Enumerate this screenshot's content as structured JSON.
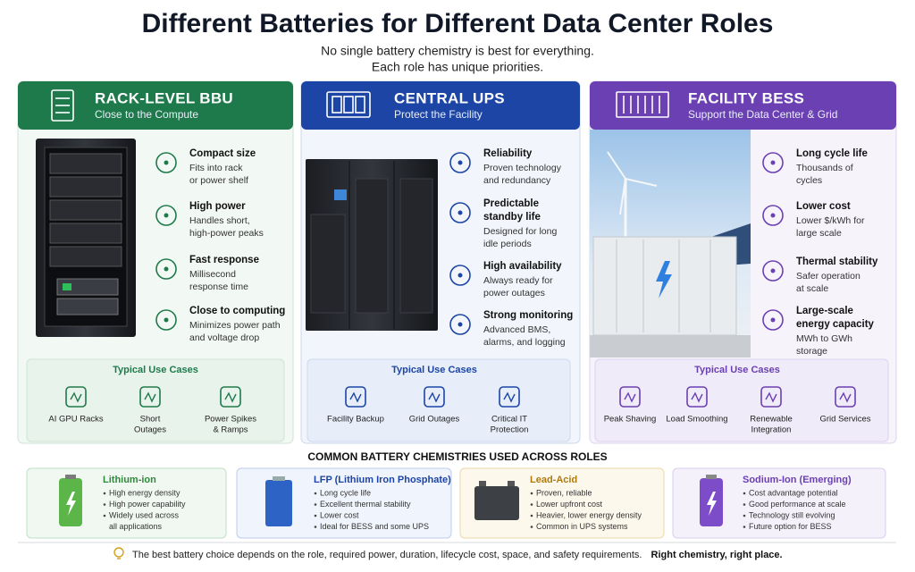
{
  "header": {
    "title": "Different Batteries for Different Data Center Roles",
    "subtitle": [
      "No single battery chemistry is best for everything.",
      "Each role has unique priorities."
    ]
  },
  "roles": [
    {
      "title": "RACK-LEVEL BBU",
      "subtitle": "Close to the Compute",
      "features": [
        {
          "title": [
            "Compact size"
          ],
          "text": [
            "Fits into rack",
            "or power shelf"
          ]
        },
        {
          "title": [
            "High power"
          ],
          "text": [
            "Handles short,",
            "high-power peaks"
          ]
        },
        {
          "title": [
            "Fast response"
          ],
          "text": [
            "Millisecond",
            "response time"
          ]
        },
        {
          "title": [
            "Close to computing"
          ],
          "text": [
            "Minimizes power path",
            "and voltage drop"
          ]
        }
      ],
      "use_cases_title": "Typical Use Cases",
      "use_cases": [
        [
          "AI GPU Racks"
        ],
        [
          "Short",
          "Outages"
        ],
        [
          "Power Spikes",
          "& Ramps"
        ]
      ]
    },
    {
      "title": "CENTRAL UPS",
      "subtitle": "Protect the Facility",
      "features": [
        {
          "title": [
            "Reliability"
          ],
          "text": [
            "Proven technology",
            "and redundancy"
          ]
        },
        {
          "title": [
            "Predictable",
            "standby life"
          ],
          "text": [
            "Designed for long",
            "idle periods"
          ]
        },
        {
          "title": [
            "High availability"
          ],
          "text": [
            "Always ready for",
            "power outages"
          ]
        },
        {
          "title": [
            "Strong monitoring"
          ],
          "text": [
            "Advanced BMS,",
            "alarms, and logging"
          ]
        }
      ],
      "use_cases_title": "Typical Use Cases",
      "use_cases": [
        [
          "Facility Backup"
        ],
        [
          "Grid Outages"
        ],
        [
          "Critical IT",
          "Protection"
        ]
      ]
    },
    {
      "title": "FACILITY BESS",
      "subtitle": "Support the Data Center & Grid",
      "features": [
        {
          "title": [
            "Long cycle life"
          ],
          "text": [
            "Thousands of",
            "cycles"
          ]
        },
        {
          "title": [
            "Lower cost"
          ],
          "text": [
            "Lower $/kWh for",
            "large scale"
          ]
        },
        {
          "title": [
            "Thermal stability"
          ],
          "text": [
            "Safer operation",
            "at scale"
          ]
        },
        {
          "title": [
            "Large-scale",
            "energy capacity"
          ],
          "text": [
            "MWh to GWh",
            "storage"
          ]
        }
      ],
      "use_cases_title": "Typical Use Cases",
      "use_cases": [
        [
          "Peak Shaving"
        ],
        [
          "Load Smoothing"
        ],
        [
          "Renewable",
          "Integration"
        ],
        [
          "Grid Services"
        ]
      ]
    }
  ],
  "chemistries_title": "COMMON BATTERY CHEMISTRIES USED ACROSS ROLES",
  "chemistries": [
    {
      "name": "Lithium-ion",
      "points": [
        [
          "High energy density"
        ],
        [
          "High power capability"
        ],
        [
          "Widely used across",
          "all applications"
        ]
      ]
    },
    {
      "name": "LFP (Lithium Iron Phosphate)",
      "points": [
        [
          "Long cycle life"
        ],
        [
          "Excellent thermal stability"
        ],
        [
          "Lower cost"
        ],
        [
          "Ideal for BESS and some UPS"
        ]
      ]
    },
    {
      "name": "Lead-Acid",
      "points": [
        [
          "Proven, reliable"
        ],
        [
          "Lower upfront cost"
        ],
        [
          "Heavier, lower energy density"
        ],
        [
          "Common in UPS systems"
        ]
      ]
    },
    {
      "name": "Sodium-Ion (Emerging)",
      "points": [
        [
          "Cost advantage potential"
        ],
        [
          "Good performance at scale"
        ],
        [
          "Technology still evolving"
        ],
        [
          "Future option for BESS"
        ]
      ]
    }
  ],
  "footer": {
    "text": "The best battery choice depends on the role, required power, duration, lifecycle cost, space, and safety requirements.",
    "emphasis": "Right chemistry, right place."
  }
}
